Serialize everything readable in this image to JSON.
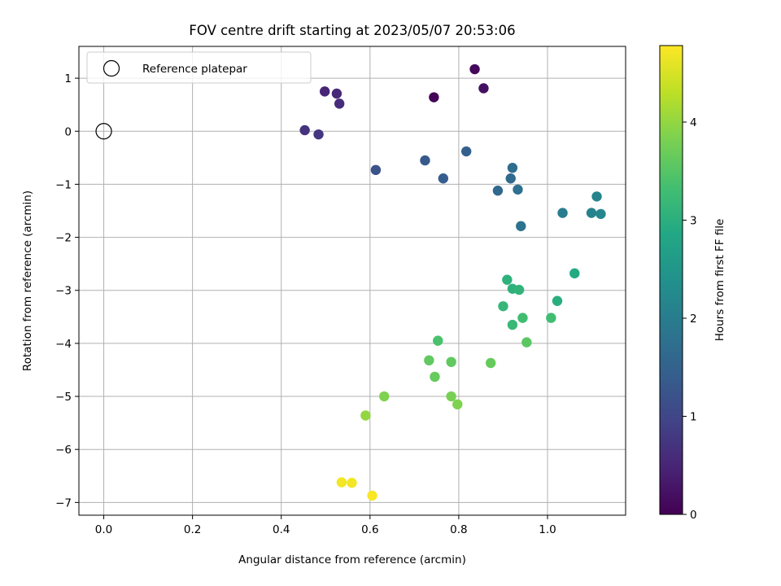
{
  "chart_data": {
    "type": "scatter",
    "title": "FOV centre drift starting at 2023/05/07 20:53:06",
    "xlabel": "Angular distance from reference (arcmin)",
    "ylabel": "Rotation from reference (arcmin)",
    "xlim": [
      -0.056,
      1.176
    ],
    "ylim": [
      -7.24,
      1.6
    ],
    "x_ticks": [
      0.0,
      0.2,
      0.4,
      0.6,
      0.8,
      1.0
    ],
    "x_tick_labels": [
      "0.0",
      "0.2",
      "0.4",
      "0.6",
      "0.8",
      "1.0"
    ],
    "y_ticks": [
      1,
      0,
      -1,
      -2,
      -3,
      -4,
      -5,
      -6,
      -7
    ],
    "y_tick_labels": [
      "1",
      "0",
      "−1",
      "−2",
      "−3",
      "−4",
      "−5",
      "−6",
      "−7"
    ],
    "grid": true,
    "legend": {
      "placement": "top-left",
      "label": "Reference platepar"
    },
    "reference_point": {
      "x": 0.0,
      "y": 0.0
    },
    "colorbar": {
      "label": "Hours from first FF file",
      "range": [
        0,
        4.78
      ],
      "ticks": [
        0,
        1,
        2,
        3,
        4
      ],
      "tick_labels": [
        "0",
        "1",
        "2",
        "3",
        "4"
      ],
      "colormap": "viridis"
    },
    "points": [
      {
        "x": 0.744,
        "y": 0.64,
        "c": 0.03
      },
      {
        "x": 0.836,
        "y": 1.17,
        "c": 0.1
      },
      {
        "x": 0.856,
        "y": 0.81,
        "c": 0.2
      },
      {
        "x": 0.498,
        "y": 0.75,
        "c": 0.5
      },
      {
        "x": 0.525,
        "y": 0.71,
        "c": 0.55
      },
      {
        "x": 0.531,
        "y": 0.52,
        "c": 0.6
      },
      {
        "x": 0.453,
        "y": 0.02,
        "c": 0.7
      },
      {
        "x": 0.484,
        "y": -0.06,
        "c": 0.75
      },
      {
        "x": 0.613,
        "y": -0.73,
        "c": 1.2
      },
      {
        "x": 0.724,
        "y": -0.55,
        "c": 1.35
      },
      {
        "x": 0.765,
        "y": -0.89,
        "c": 1.4
      },
      {
        "x": 0.817,
        "y": -0.38,
        "c": 1.45
      },
      {
        "x": 0.888,
        "y": -1.12,
        "c": 1.6
      },
      {
        "x": 0.917,
        "y": -0.89,
        "c": 1.65
      },
      {
        "x": 0.921,
        "y": -0.69,
        "c": 1.7
      },
      {
        "x": 0.933,
        "y": -1.1,
        "c": 1.75
      },
      {
        "x": 0.94,
        "y": -1.79,
        "c": 1.8
      },
      {
        "x": 1.034,
        "y": -1.54,
        "c": 2.0
      },
      {
        "x": 1.099,
        "y": -1.54,
        "c": 2.1
      },
      {
        "x": 1.111,
        "y": -1.23,
        "c": 2.15
      },
      {
        "x": 1.12,
        "y": -1.56,
        "c": 2.2
      },
      {
        "x": 1.061,
        "y": -2.68,
        "c": 2.9
      },
      {
        "x": 1.022,
        "y": -3.2,
        "c": 3.0
      },
      {
        "x": 0.909,
        "y": -2.8,
        "c": 3.05
      },
      {
        "x": 0.921,
        "y": -2.97,
        "c": 3.05
      },
      {
        "x": 0.936,
        "y": -2.99,
        "c": 3.1
      },
      {
        "x": 0.9,
        "y": -3.3,
        "c": 3.15
      },
      {
        "x": 0.921,
        "y": -3.65,
        "c": 3.2
      },
      {
        "x": 0.944,
        "y": -3.52,
        "c": 3.3
      },
      {
        "x": 1.008,
        "y": -3.52,
        "c": 3.3
      },
      {
        "x": 0.753,
        "y": -3.95,
        "c": 3.4
      },
      {
        "x": 0.953,
        "y": -3.98,
        "c": 3.55
      },
      {
        "x": 0.733,
        "y": -4.32,
        "c": 3.6
      },
      {
        "x": 0.783,
        "y": -4.35,
        "c": 3.6
      },
      {
        "x": 0.872,
        "y": -4.37,
        "c": 3.65
      },
      {
        "x": 0.746,
        "y": -4.63,
        "c": 3.65
      },
      {
        "x": 0.632,
        "y": -5.0,
        "c": 3.85
      },
      {
        "x": 0.783,
        "y": -5.0,
        "c": 3.8
      },
      {
        "x": 0.797,
        "y": -5.15,
        "c": 3.85
      },
      {
        "x": 0.59,
        "y": -5.36,
        "c": 4.0
      },
      {
        "x": 0.536,
        "y": -6.62,
        "c": 4.7
      },
      {
        "x": 0.559,
        "y": -6.63,
        "c": 4.7
      },
      {
        "x": 0.605,
        "y": -6.87,
        "c": 4.75
      }
    ]
  }
}
